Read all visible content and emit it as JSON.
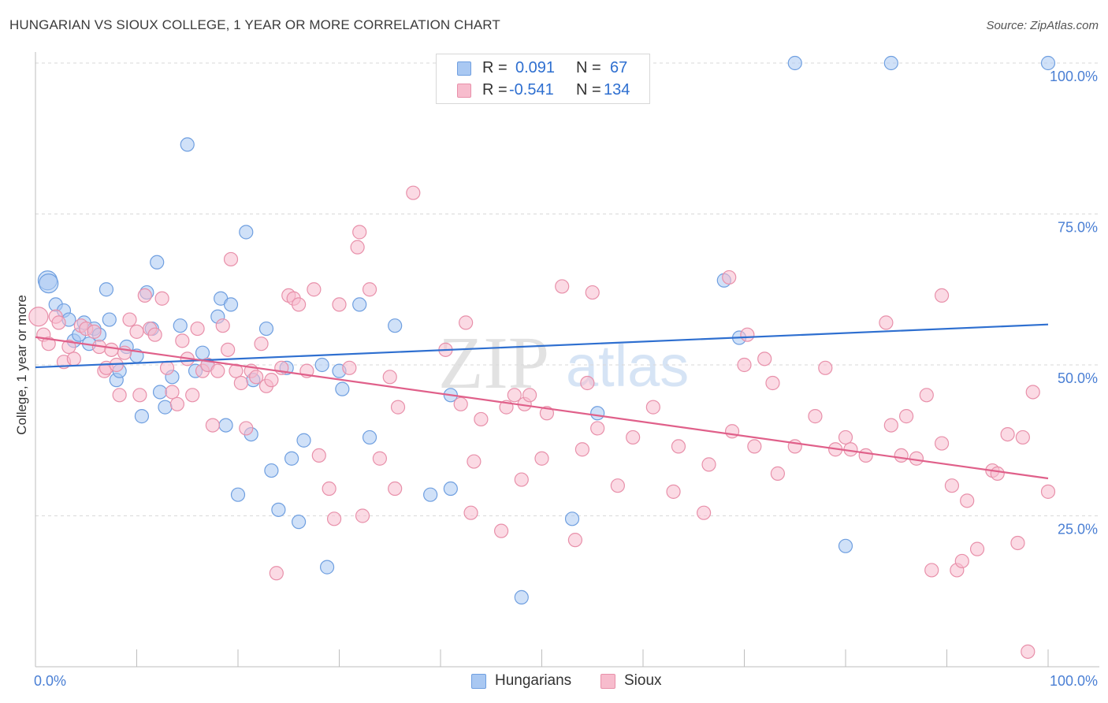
{
  "title": "HUNGARIAN VS SIOUX COLLEGE, 1 YEAR OR MORE CORRELATION CHART",
  "source": "Source: ZipAtlas.com",
  "legend_box": {
    "rows": [
      {
        "r_label": "R =",
        "r_value": "0.091",
        "n_label": "N =",
        "n_value": "67",
        "color": "#a9c8f2",
        "border": "#6f9fe0"
      },
      {
        "r_label": "R =",
        "r_value": "-0.541",
        "n_label": "N =",
        "n_value": "134",
        "color": "#f7bccd",
        "border": "#e890aa"
      }
    ]
  },
  "bottom_legend": [
    {
      "label": "Hungarians",
      "color": "#a9c8f2",
      "border": "#6f9fe0"
    },
    {
      "label": "Sioux",
      "color": "#f7bccd",
      "border": "#e890aa"
    }
  ],
  "watermark": {
    "zip": "ZIP",
    "atlas": "atlas"
  },
  "chart_data": {
    "type": "scatter",
    "title": "HUNGARIAN VS SIOUX COLLEGE, 1 YEAR OR MORE CORRELATION CHART",
    "xlabel": "",
    "ylabel": "College, 1 year or more",
    "xlim": [
      0,
      100
    ],
    "ylim": [
      0,
      100
    ],
    "x_tick_labels": [
      "0.0%",
      "100.0%"
    ],
    "y_tick_labels": [
      "25.0%",
      "50.0%",
      "75.0%",
      "100.0%"
    ],
    "y_ticks": [
      25,
      50,
      75,
      100
    ],
    "grid": "horizontal dashed",
    "legend_position": "top-center",
    "series": [
      {
        "name": "Hungarians",
        "color": "#a9c8f2",
        "edge": "#6f9fe0",
        "line_color": "#2e6fd0",
        "trend": {
          "x": [
            0,
            100
          ],
          "y": [
            49.6,
            56.7
          ]
        },
        "points": [
          {
            "x": 1.2,
            "y": 64.0
          },
          {
            "x": 1.3,
            "y": 63.5
          },
          {
            "x": 2.0,
            "y": 60.0
          },
          {
            "x": 2.8,
            "y": 59.0
          },
          {
            "x": 3.3,
            "y": 57.5
          },
          {
            "x": 3.8,
            "y": 54.0
          },
          {
            "x": 4.3,
            "y": 55.0
          },
          {
            "x": 4.8,
            "y": 57.0
          },
          {
            "x": 5.3,
            "y": 53.5
          },
          {
            "x": 5.8,
            "y": 56.0
          },
          {
            "x": 6.3,
            "y": 55.0
          },
          {
            "x": 7.0,
            "y": 62.5
          },
          {
            "x": 7.3,
            "y": 57.5
          },
          {
            "x": 8.0,
            "y": 47.5
          },
          {
            "x": 8.3,
            "y": 49.0
          },
          {
            "x": 9.0,
            "y": 53.0
          },
          {
            "x": 10.0,
            "y": 51.5
          },
          {
            "x": 10.5,
            "y": 41.5
          },
          {
            "x": 11.0,
            "y": 62.0
          },
          {
            "x": 11.5,
            "y": 56.0
          },
          {
            "x": 12.0,
            "y": 67.0
          },
          {
            "x": 12.3,
            "y": 45.5
          },
          {
            "x": 12.8,
            "y": 43.0
          },
          {
            "x": 13.5,
            "y": 48.0
          },
          {
            "x": 14.3,
            "y": 56.5
          },
          {
            "x": 15.0,
            "y": 86.5
          },
          {
            "x": 15.8,
            "y": 49.0
          },
          {
            "x": 16.5,
            "y": 52.0
          },
          {
            "x": 17.0,
            "y": 50.0
          },
          {
            "x": 18.0,
            "y": 58.0
          },
          {
            "x": 18.3,
            "y": 61.0
          },
          {
            "x": 18.8,
            "y": 40.0
          },
          {
            "x": 19.3,
            "y": 60.0
          },
          {
            "x": 20.0,
            "y": 28.5
          },
          {
            "x": 20.8,
            "y": 72.0
          },
          {
            "x": 21.3,
            "y": 38.5
          },
          {
            "x": 21.5,
            "y": 47.5
          },
          {
            "x": 22.8,
            "y": 56.0
          },
          {
            "x": 23.3,
            "y": 32.5
          },
          {
            "x": 24.0,
            "y": 26.0
          },
          {
            "x": 24.8,
            "y": 49.5
          },
          {
            "x": 25.3,
            "y": 34.5
          },
          {
            "x": 26.0,
            "y": 24.0
          },
          {
            "x": 26.5,
            "y": 37.5
          },
          {
            "x": 28.3,
            "y": 50.0
          },
          {
            "x": 28.8,
            "y": 16.5
          },
          {
            "x": 30.0,
            "y": 49.0
          },
          {
            "x": 30.3,
            "y": 46.0
          },
          {
            "x": 32.0,
            "y": 60.0
          },
          {
            "x": 33.0,
            "y": 38.0
          },
          {
            "x": 35.5,
            "y": 56.5
          },
          {
            "x": 39.0,
            "y": 28.5
          },
          {
            "x": 41.0,
            "y": 45.0
          },
          {
            "x": 41.0,
            "y": 29.5
          },
          {
            "x": 48.0,
            "y": 11.5
          },
          {
            "x": 53.0,
            "y": 24.5
          },
          {
            "x": 55.5,
            "y": 42.0
          },
          {
            "x": 68.0,
            "y": 64.0
          },
          {
            "x": 69.5,
            "y": 54.5
          },
          {
            "x": 75.0,
            "y": 100.0
          },
          {
            "x": 80.0,
            "y": 20.0
          },
          {
            "x": 84.5,
            "y": 100.0
          },
          {
            "x": 100.0,
            "y": 100.0
          }
        ]
      },
      {
        "name": "Sioux",
        "color": "#f7bccd",
        "edge": "#e890aa",
        "line_color": "#e0608a",
        "trend": {
          "x": [
            0,
            100
          ],
          "y": [
            54.6,
            31.2
          ]
        },
        "points": [
          {
            "x": 0.3,
            "y": 58.0
          },
          {
            "x": 0.8,
            "y": 55.0
          },
          {
            "x": 1.3,
            "y": 53.5
          },
          {
            "x": 2.0,
            "y": 58.0
          },
          {
            "x": 2.3,
            "y": 57.0
          },
          {
            "x": 2.8,
            "y": 50.5
          },
          {
            "x": 3.3,
            "y": 53.0
          },
          {
            "x": 3.8,
            "y": 51.0
          },
          {
            "x": 4.5,
            "y": 56.5
          },
          {
            "x": 5.0,
            "y": 56.0
          },
          {
            "x": 5.8,
            "y": 55.5
          },
          {
            "x": 6.3,
            "y": 53.0
          },
          {
            "x": 6.8,
            "y": 49.0
          },
          {
            "x": 7.0,
            "y": 49.5
          },
          {
            "x": 7.5,
            "y": 52.5
          },
          {
            "x": 8.0,
            "y": 50.0
          },
          {
            "x": 8.3,
            "y": 45.0
          },
          {
            "x": 8.8,
            "y": 52.0
          },
          {
            "x": 9.3,
            "y": 57.5
          },
          {
            "x": 10.0,
            "y": 55.5
          },
          {
            "x": 10.3,
            "y": 45.0
          },
          {
            "x": 10.8,
            "y": 61.5
          },
          {
            "x": 11.3,
            "y": 56.0
          },
          {
            "x": 11.8,
            "y": 55.0
          },
          {
            "x": 12.5,
            "y": 61.0
          },
          {
            "x": 13.0,
            "y": 49.5
          },
          {
            "x": 13.5,
            "y": 45.5
          },
          {
            "x": 14.0,
            "y": 43.5
          },
          {
            "x": 14.5,
            "y": 54.0
          },
          {
            "x": 15.0,
            "y": 51.0
          },
          {
            "x": 15.5,
            "y": 45.0
          },
          {
            "x": 16.0,
            "y": 56.0
          },
          {
            "x": 16.5,
            "y": 49.0
          },
          {
            "x": 17.0,
            "y": 50.0
          },
          {
            "x": 17.5,
            "y": 40.0
          },
          {
            "x": 18.0,
            "y": 49.0
          },
          {
            "x": 18.5,
            "y": 56.5
          },
          {
            "x": 19.0,
            "y": 52.5
          },
          {
            "x": 19.3,
            "y": 67.5
          },
          {
            "x": 19.8,
            "y": 49.0
          },
          {
            "x": 20.3,
            "y": 47.0
          },
          {
            "x": 20.8,
            "y": 39.5
          },
          {
            "x": 21.3,
            "y": 49.0
          },
          {
            "x": 21.8,
            "y": 48.0
          },
          {
            "x": 22.3,
            "y": 53.5
          },
          {
            "x": 22.8,
            "y": 46.5
          },
          {
            "x": 23.3,
            "y": 47.5
          },
          {
            "x": 23.8,
            "y": 15.5
          },
          {
            "x": 24.3,
            "y": 49.5
          },
          {
            "x": 25.0,
            "y": 61.5
          },
          {
            "x": 25.5,
            "y": 61.0
          },
          {
            "x": 26.0,
            "y": 60.0
          },
          {
            "x": 26.8,
            "y": 49.0
          },
          {
            "x": 27.5,
            "y": 62.5
          },
          {
            "x": 28.0,
            "y": 35.0
          },
          {
            "x": 29.0,
            "y": 29.5
          },
          {
            "x": 29.5,
            "y": 24.5
          },
          {
            "x": 30.0,
            "y": 60.0
          },
          {
            "x": 31.0,
            "y": 49.5
          },
          {
            "x": 31.8,
            "y": 69.5
          },
          {
            "x": 32.0,
            "y": 72.0
          },
          {
            "x": 32.3,
            "y": 25.0
          },
          {
            "x": 33.0,
            "y": 62.5
          },
          {
            "x": 34.0,
            "y": 34.5
          },
          {
            "x": 35.0,
            "y": 48.0
          },
          {
            "x": 35.5,
            "y": 29.5
          },
          {
            "x": 35.8,
            "y": 43.0
          },
          {
            "x": 37.3,
            "y": 78.5
          },
          {
            "x": 40.5,
            "y": 52.5
          },
          {
            "x": 42.0,
            "y": 43.5
          },
          {
            "x": 42.5,
            "y": 57.0
          },
          {
            "x": 43.0,
            "y": 25.5
          },
          {
            "x": 43.3,
            "y": 34.0
          },
          {
            "x": 44.0,
            "y": 41.0
          },
          {
            "x": 46.0,
            "y": 22.5
          },
          {
            "x": 46.5,
            "y": 43.0
          },
          {
            "x": 47.3,
            "y": 45.0
          },
          {
            "x": 48.0,
            "y": 31.0
          },
          {
            "x": 48.3,
            "y": 43.5
          },
          {
            "x": 48.8,
            "y": 45.0
          },
          {
            "x": 50.0,
            "y": 34.5
          },
          {
            "x": 50.5,
            "y": 42.0
          },
          {
            "x": 52.0,
            "y": 63.0
          },
          {
            "x": 53.3,
            "y": 21.0
          },
          {
            "x": 54.0,
            "y": 36.0
          },
          {
            "x": 54.5,
            "y": 47.0
          },
          {
            "x": 55.0,
            "y": 62.0
          },
          {
            "x": 55.5,
            "y": 39.5
          },
          {
            "x": 57.5,
            "y": 30.0
          },
          {
            "x": 59.0,
            "y": 38.0
          },
          {
            "x": 61.0,
            "y": 43.0
          },
          {
            "x": 63.0,
            "y": 29.0
          },
          {
            "x": 63.5,
            "y": 36.5
          },
          {
            "x": 66.0,
            "y": 25.5
          },
          {
            "x": 66.5,
            "y": 33.5
          },
          {
            "x": 68.5,
            "y": 64.5
          },
          {
            "x": 68.8,
            "y": 39.0
          },
          {
            "x": 70.0,
            "y": 50.0
          },
          {
            "x": 70.3,
            "y": 55.0
          },
          {
            "x": 71.0,
            "y": 36.5
          },
          {
            "x": 72.0,
            "y": 51.0
          },
          {
            "x": 72.8,
            "y": 47.0
          },
          {
            "x": 73.3,
            "y": 32.0
          },
          {
            "x": 75.0,
            "y": 36.5
          },
          {
            "x": 77.0,
            "y": 41.5
          },
          {
            "x": 78.0,
            "y": 49.5
          },
          {
            "x": 79.0,
            "y": 36.0
          },
          {
            "x": 80.0,
            "y": 38.0
          },
          {
            "x": 80.5,
            "y": 36.0
          },
          {
            "x": 82.0,
            "y": 35.0
          },
          {
            "x": 84.0,
            "y": 57.0
          },
          {
            "x": 84.5,
            "y": 40.0
          },
          {
            "x": 85.5,
            "y": 35.0
          },
          {
            "x": 86.0,
            "y": 41.5
          },
          {
            "x": 87.0,
            "y": 34.5
          },
          {
            "x": 88.0,
            "y": 45.0
          },
          {
            "x": 88.5,
            "y": 16.0
          },
          {
            "x": 89.5,
            "y": 37.0
          },
          {
            "x": 89.5,
            "y": 61.5
          },
          {
            "x": 90.5,
            "y": 30.0
          },
          {
            "x": 91.0,
            "y": 16.0
          },
          {
            "x": 91.5,
            "y": 17.5
          },
          {
            "x": 92.0,
            "y": 27.5
          },
          {
            "x": 93.0,
            "y": 19.5
          },
          {
            "x": 94.5,
            "y": 32.5
          },
          {
            "x": 95.0,
            "y": 32.0
          },
          {
            "x": 96.0,
            "y": 38.5
          },
          {
            "x": 97.0,
            "y": 20.5
          },
          {
            "x": 97.5,
            "y": 38.0
          },
          {
            "x": 98.0,
            "y": 2.5
          },
          {
            "x": 98.5,
            "y": 45.5
          },
          {
            "x": 100.0,
            "y": 29.0
          }
        ]
      }
    ]
  }
}
